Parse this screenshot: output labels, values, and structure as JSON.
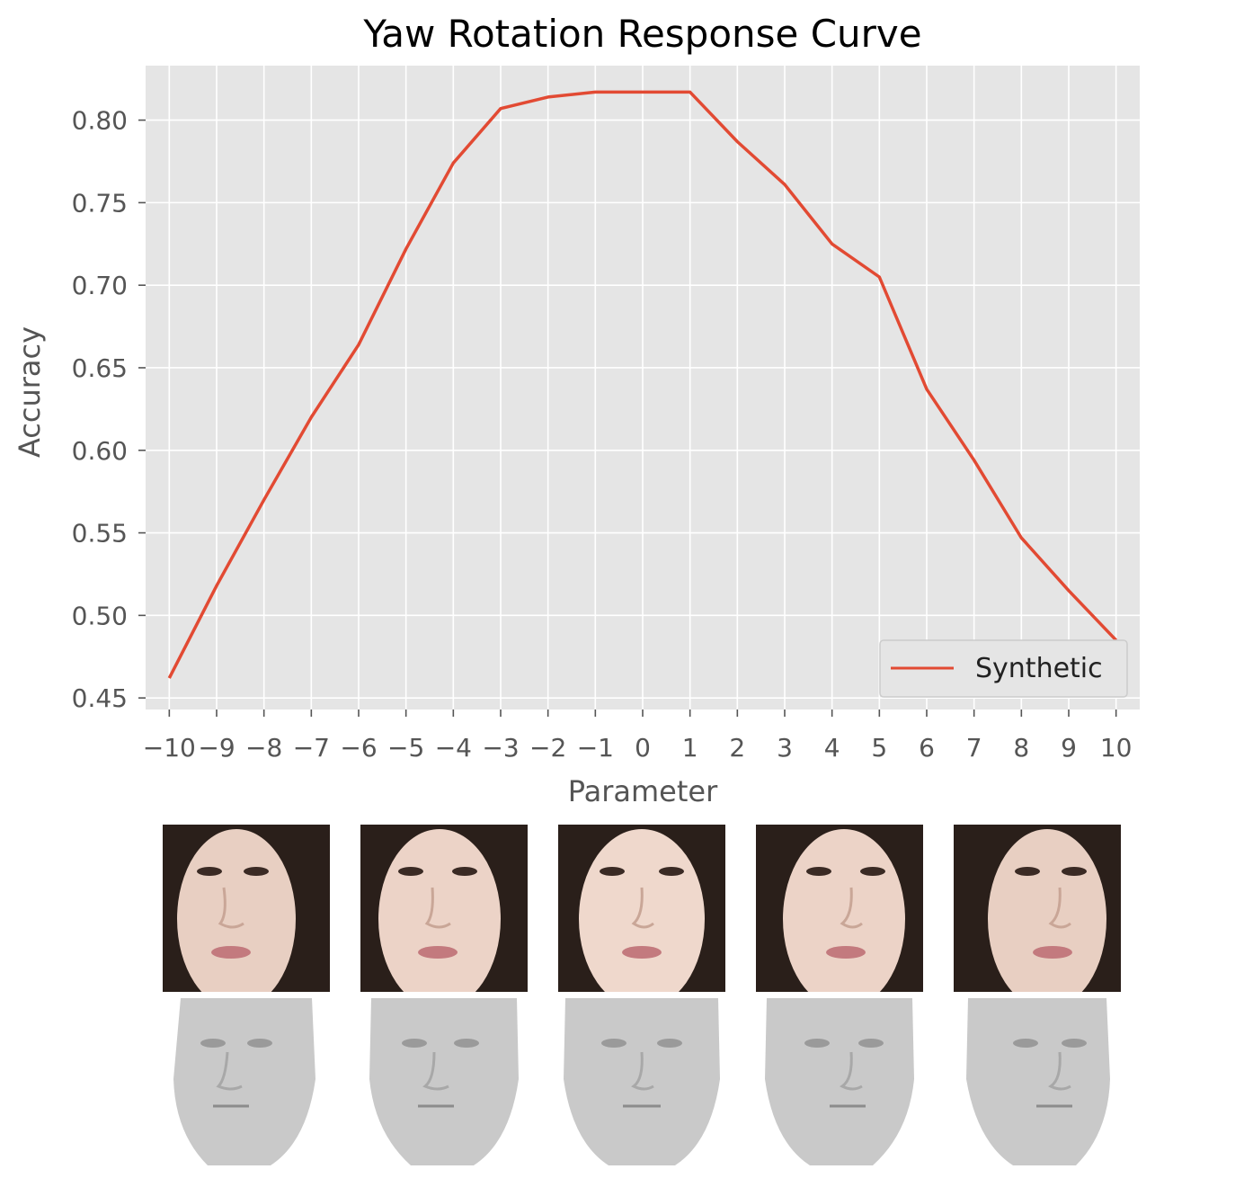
{
  "chart_data": {
    "type": "line",
    "title": "Yaw Rotation Response Curve",
    "xlabel": "Parameter",
    "ylabel": "Accuracy",
    "x": [
      -10,
      -9,
      -8,
      -7,
      -6,
      -5,
      -4,
      -3,
      -2,
      -1,
      0,
      1,
      2,
      3,
      4,
      5,
      6,
      7,
      8,
      9,
      10
    ],
    "xtick_labels": [
      "−10",
      "−9",
      "−8",
      "−7",
      "−6",
      "−5",
      "−4",
      "−3",
      "−2",
      "−1",
      "0",
      "1",
      "2",
      "3",
      "4",
      "5",
      "6",
      "7",
      "8",
      "9",
      "10"
    ],
    "yticks": [
      0.45,
      0.5,
      0.55,
      0.6,
      0.65,
      0.7,
      0.75,
      0.8
    ],
    "ytick_labels": [
      "0.45",
      "0.50",
      "0.55",
      "0.60",
      "0.65",
      "0.70",
      "0.75",
      "0.80"
    ],
    "xlim": [
      -10.5,
      10.5
    ],
    "ylim": [
      0.443,
      0.833
    ],
    "grid": true,
    "legend_position": "bottom-right",
    "series": [
      {
        "name": "Synthetic",
        "color": "#e24a33",
        "values": [
          0.462,
          0.518,
          0.57,
          0.62,
          0.664,
          0.722,
          0.774,
          0.807,
          0.814,
          0.817,
          0.817,
          0.817,
          0.787,
          0.761,
          0.725,
          0.705,
          0.637,
          0.594,
          0.547,
          0.515,
          0.485
        ]
      }
    ]
  },
  "colors": {
    "plot_background": "#e5e5e5",
    "grid": "#ffffff",
    "text": "#555555"
  },
  "images": {
    "photo_row": [
      "face-photo-1",
      "face-photo-2",
      "face-photo-3",
      "face-photo-4",
      "face-photo-5"
    ],
    "mesh_row": [
      "face-mesh-1",
      "face-mesh-2",
      "face-mesh-3",
      "face-mesh-4",
      "face-mesh-5"
    ]
  }
}
